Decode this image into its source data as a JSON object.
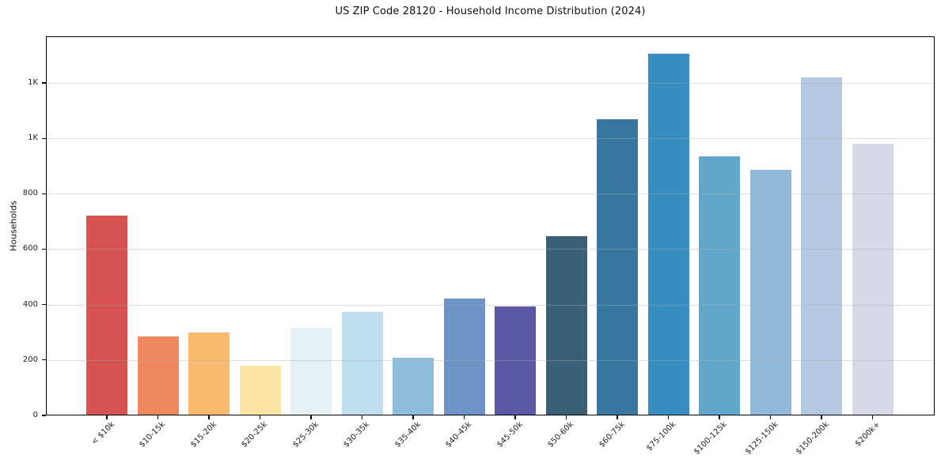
{
  "chart_data": {
    "type": "bar",
    "title": "US ZIP Code 28120 - Household Income Distribution (2024)",
    "xlabel": "",
    "ylabel": "Households",
    "categories": [
      "< $10k",
      "$10-15k",
      "$15-20k",
      "$20-25k",
      "$25-30k",
      "$30-35k",
      "$35-40k",
      "$40-45k",
      "$45-50k",
      "$50-60k",
      "$60-75k",
      "$75-100k",
      "$100-125k",
      "$125-150k",
      "$150-200k",
      "$200k+"
    ],
    "values": [
      720,
      285,
      298,
      180,
      317,
      374,
      207,
      422,
      394,
      648,
      1070,
      1305,
      935,
      886,
      1220,
      980
    ],
    "bar_colors": [
      "#d6544f",
      "#f0875f",
      "#fab96f",
      "#fce5a2",
      "#e4f1f7",
      "#bfdeee",
      "#8dbddb",
      "#6c93c6",
      "#5a59a8",
      "#3a6077",
      "#3877a0",
      "#378dc0",
      "#61a7cb",
      "#90b8d9",
      "#b6c8e1",
      "#d7d9e8"
    ],
    "ylim": [
      0,
      1368
    ],
    "yticks": {
      "values": [
        0,
        200,
        400,
        600,
        800,
        1000,
        1200
      ],
      "labels": [
        "0",
        "200",
        "400",
        "600",
        "800",
        "1K",
        "1K"
      ]
    },
    "grid": "horizontal",
    "x_tick_rotation": 45,
    "legend": "none"
  }
}
